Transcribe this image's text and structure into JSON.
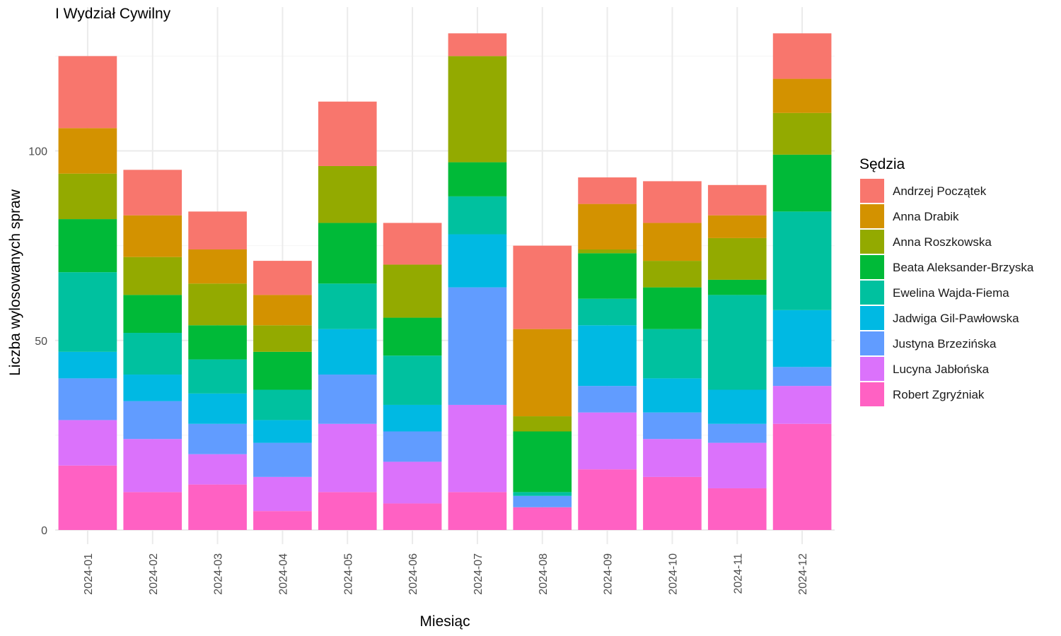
{
  "chart_data": {
    "type": "bar",
    "stacked": true,
    "title": "I Wydział Cywilny",
    "xlabel": "Miesiąc",
    "ylabel": "Liczba wylosowanych spraw",
    "ylim": [
      0,
      137
    ],
    "yticks": [
      "0",
      "50",
      "100"
    ],
    "grid": true,
    "legend_title": "Sędzia",
    "legend_position": "right",
    "categories": [
      "2024-01",
      "2024-02",
      "2024-03",
      "2024-04",
      "2024-05",
      "2024-06",
      "2024-07",
      "2024-08",
      "2024-09",
      "2024-10",
      "2024-11",
      "2024-12"
    ],
    "series": [
      {
        "name": "Robert Zgryźniak",
        "color": "#FF61C3",
        "values": [
          17,
          10,
          12,
          5,
          10,
          7,
          10,
          6,
          16,
          14,
          11,
          28
        ]
      },
      {
        "name": "Lucyna Jabłońska",
        "color": "#DB72FB",
        "values": [
          12,
          14,
          8,
          9,
          18,
          11,
          23,
          0,
          15,
          10,
          12,
          10
        ]
      },
      {
        "name": "Justyna Brzezińska",
        "color": "#619CFF",
        "values": [
          11,
          10,
          8,
          9,
          13,
          8,
          31,
          3,
          7,
          7,
          5,
          5
        ]
      },
      {
        "name": "Jadwiga Gil-Pawłowska",
        "color": "#00B9E3",
        "values": [
          7,
          7,
          8,
          6,
          12,
          7,
          14,
          0,
          16,
          9,
          9,
          15
        ]
      },
      {
        "name": "Ewelina Wajda-Fiema",
        "color": "#00C19F",
        "values": [
          21,
          11,
          9,
          8,
          12,
          13,
          10,
          1,
          7,
          13,
          25,
          26
        ]
      },
      {
        "name": "Beata Aleksander-Brzyska",
        "color": "#00BA38",
        "values": [
          14,
          10,
          9,
          10,
          16,
          10,
          9,
          16,
          12,
          11,
          4,
          15
        ]
      },
      {
        "name": "Anna Roszkowska",
        "color": "#93AA00",
        "values": [
          12,
          10,
          11,
          7,
          15,
          14,
          28,
          4,
          1,
          7,
          11,
          11
        ]
      },
      {
        "name": "Anna Drabik",
        "color": "#D39200",
        "values": [
          12,
          11,
          9,
          8,
          0,
          0,
          0,
          23,
          12,
          10,
          6,
          9
        ]
      },
      {
        "name": "Andrzej Początek",
        "color": "#F8766D",
        "values": [
          19,
          12,
          10,
          9,
          17,
          11,
          6,
          22,
          7,
          11,
          8,
          12
        ]
      }
    ],
    "legend_order": [
      "Andrzej Początek",
      "Anna Drabik",
      "Anna Roszkowska",
      "Beata Aleksander-Brzyska",
      "Ewelina Wajda-Fiema",
      "Jadwiga Gil-Pawłowska",
      "Justyna Brzezińska",
      "Lucyna Jabłońska",
      "Robert Zgryźniak"
    ]
  }
}
